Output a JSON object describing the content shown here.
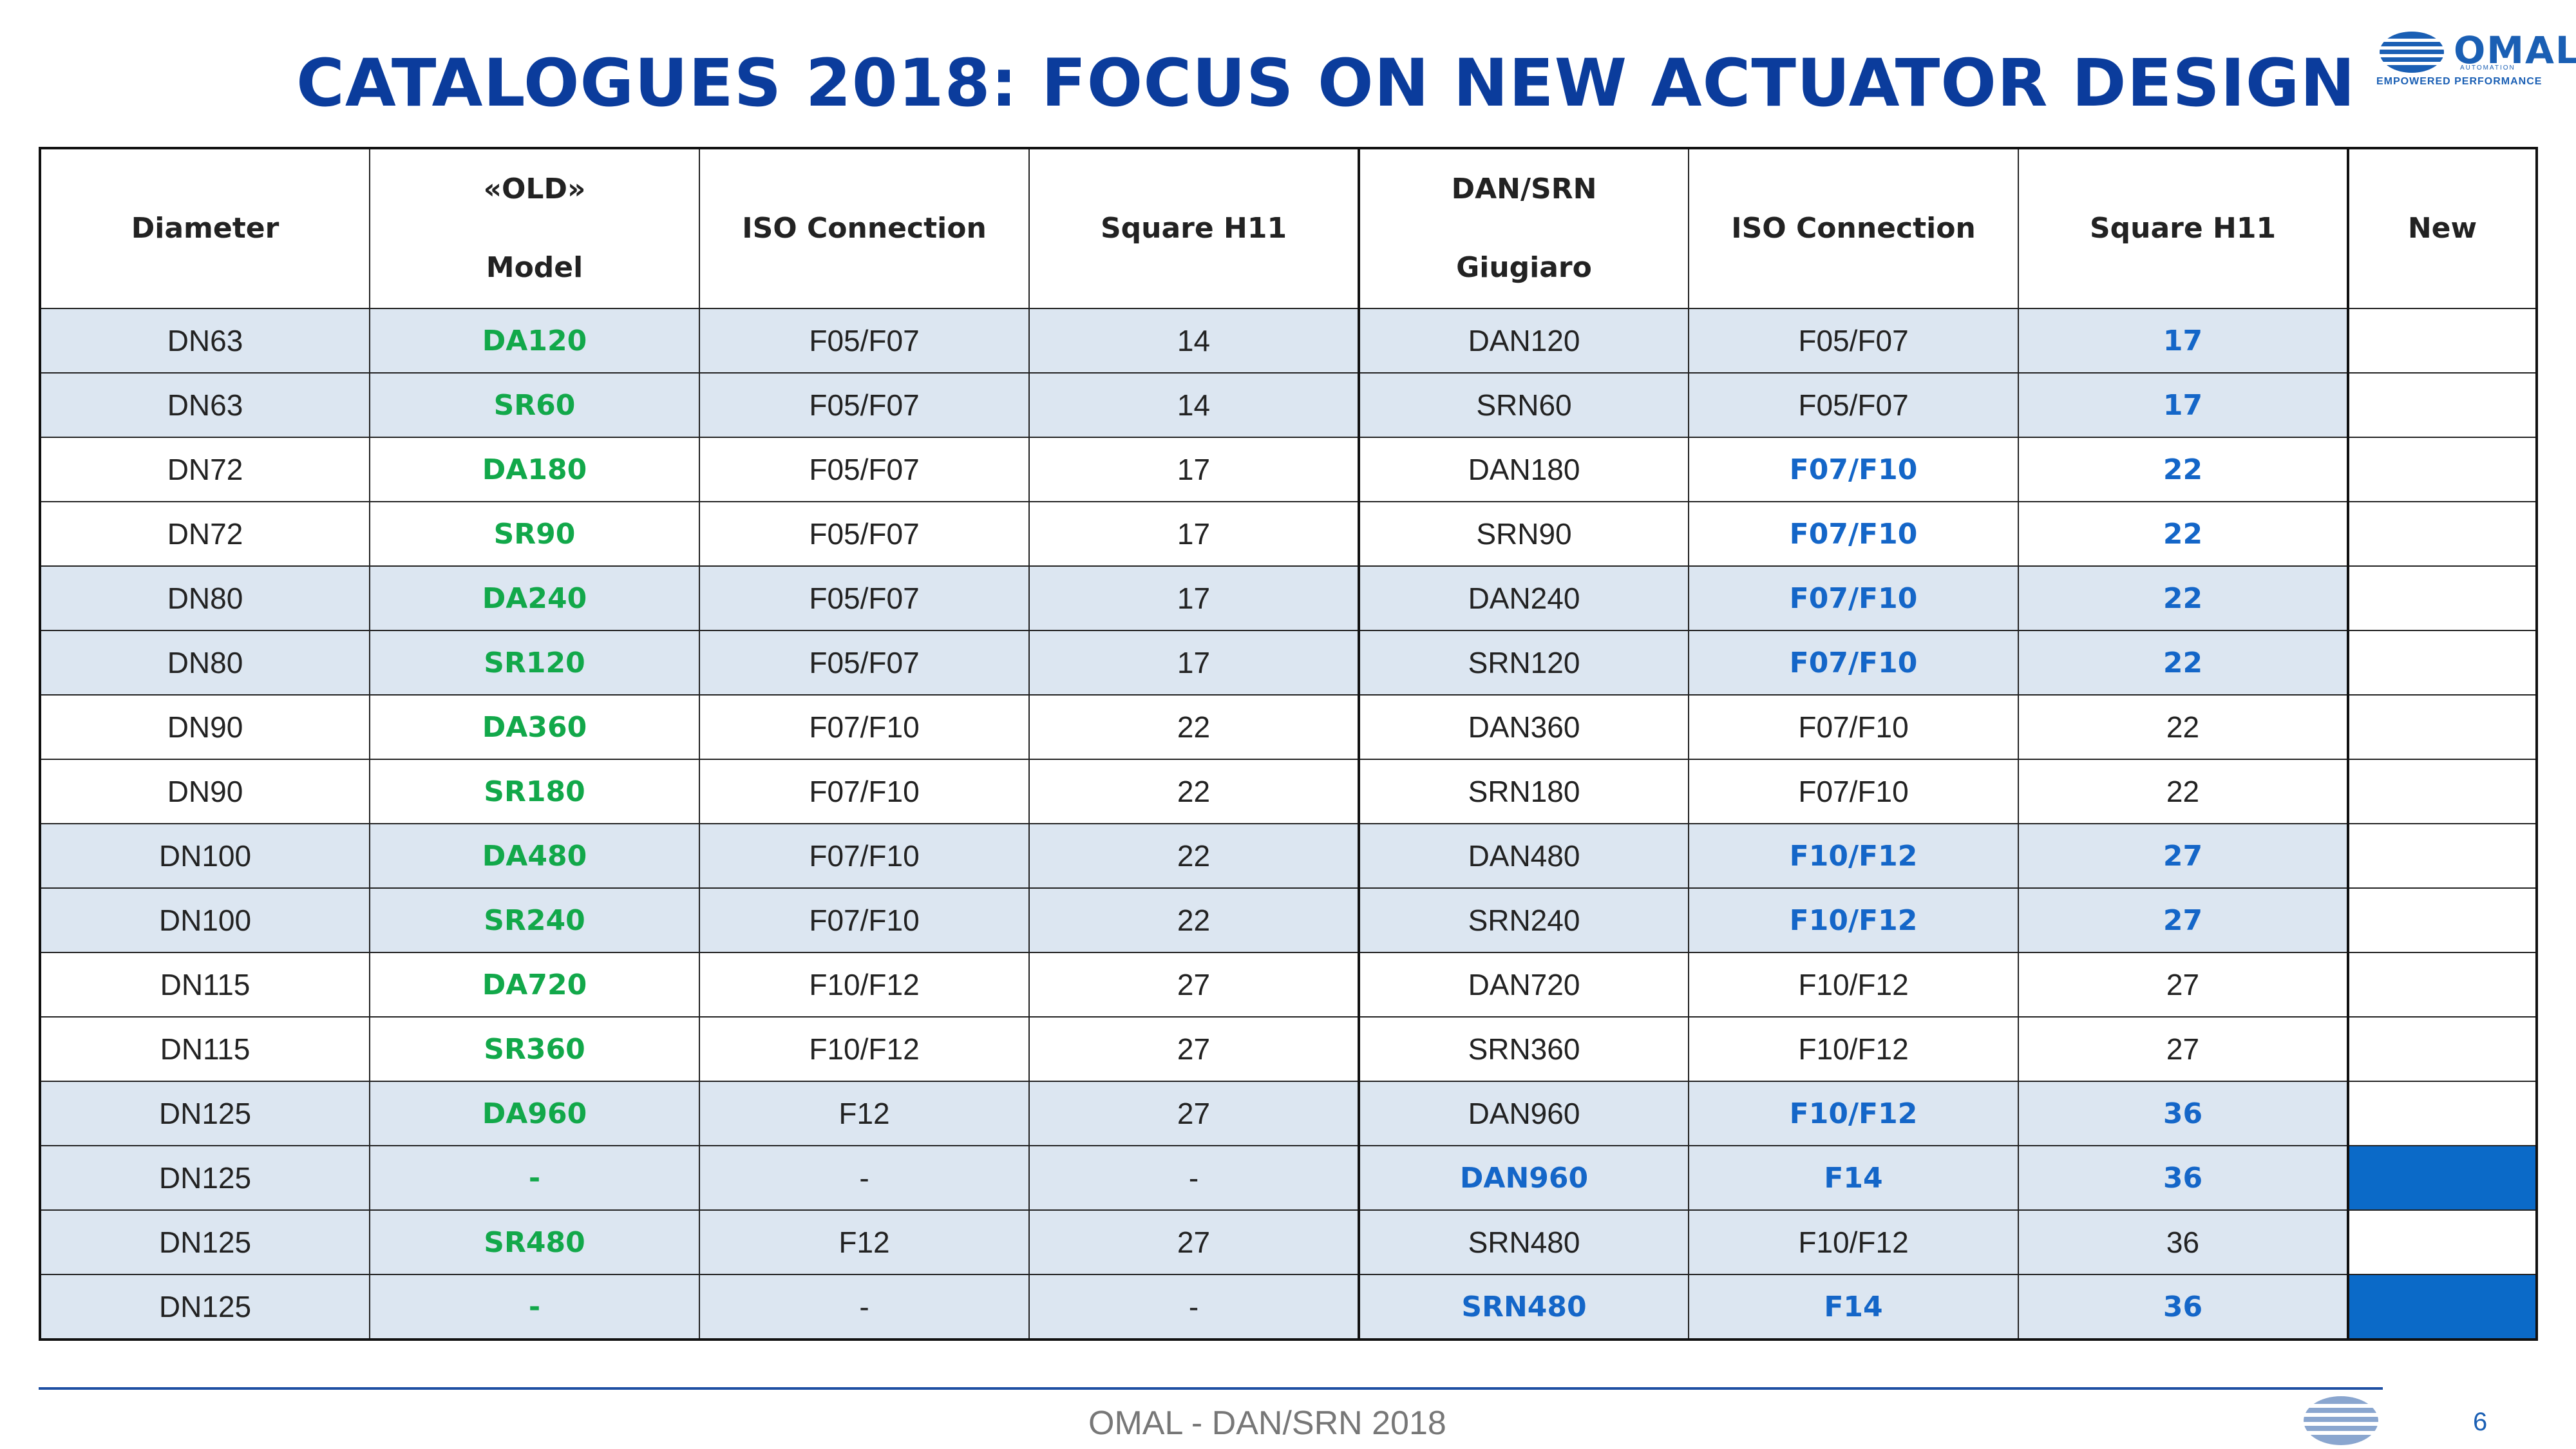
{
  "title": "CATALOGUES 2018: FOCUS ON NEW ACTUATOR DESIGN",
  "logo": {
    "name": "OMAL",
    "sub": "AUTOMATION",
    "tagline": "EMPOWERED PERFORMANCE",
    "icon": "omal-globe-icon"
  },
  "colors": {
    "title": "#0b3c9c",
    "green": "#12a84a",
    "blue": "#1466c8",
    "shade": "#dce6f1",
    "new_fill": "#0b6ac8"
  },
  "table": {
    "headers": {
      "diameter": "Diameter",
      "old_line1": "«OLD»",
      "old_line2": "Model",
      "iso1": "ISO Connection",
      "sq1": "Square H11",
      "dan_line1": "DAN/SRN",
      "dan_line2": "Giugiaro",
      "iso2": "ISO Connection",
      "sq2": "Square H11",
      "new": "New"
    },
    "rows": [
      {
        "d": "DN63",
        "m": "DA120",
        "iso": "F05/F07",
        "sq": "14",
        "n": "DAN120",
        "iso2": "F05/F07",
        "sq2": "17"
      },
      {
        "d": "DN63",
        "m": "SR60",
        "iso": "F05/F07",
        "sq": "14",
        "n": "SRN60",
        "iso2": "F05/F07",
        "sq2": "17"
      },
      {
        "d": "DN72",
        "m": "DA180",
        "iso": "F05/F07",
        "sq": "17",
        "n": "DAN180",
        "iso2": "F07/F10",
        "sq2": "22"
      },
      {
        "d": "DN72",
        "m": "SR90",
        "iso": "F05/F07",
        "sq": "17",
        "n": "SRN90",
        "iso2": "F07/F10",
        "sq2": "22"
      },
      {
        "d": "DN80",
        "m": "DA240",
        "iso": "F05/F07",
        "sq": "17",
        "n": "DAN240",
        "iso2": "F07/F10",
        "sq2": "22"
      },
      {
        "d": "DN80",
        "m": "SR120",
        "iso": "F05/F07",
        "sq": "17",
        "n": "SRN120",
        "iso2": "F07/F10",
        "sq2": "22"
      },
      {
        "d": "DN90",
        "m": "DA360",
        "iso": "F07/F10",
        "sq": "22",
        "n": "DAN360",
        "iso2": "F07/F10",
        "sq2": "22"
      },
      {
        "d": "DN90",
        "m": "SR180",
        "iso": "F07/F10",
        "sq": "22",
        "n": "SRN180",
        "iso2": "F07/F10",
        "sq2": "22"
      },
      {
        "d": "DN100",
        "m": "DA480",
        "iso": "F07/F10",
        "sq": "22",
        "n": "DAN480",
        "iso2": "F10/F12",
        "sq2": "27"
      },
      {
        "d": "DN100",
        "m": "SR240",
        "iso": "F07/F10",
        "sq": "22",
        "n": "SRN240",
        "iso2": "F10/F12",
        "sq2": "27"
      },
      {
        "d": "DN115",
        "m": "DA720",
        "iso": "F10/F12",
        "sq": "27",
        "n": "DAN720",
        "iso2": "F10/F12",
        "sq2": "27"
      },
      {
        "d": "DN115",
        "m": "SR360",
        "iso": "F10/F12",
        "sq": "27",
        "n": "SRN360",
        "iso2": "F10/F12",
        "sq2": "27"
      },
      {
        "d": "DN125",
        "m": "DA960",
        "iso": "F12",
        "sq": "27",
        "n": "DAN960",
        "iso2": "F10/F12",
        "sq2": "36"
      },
      {
        "d": "DN125",
        "m": "-",
        "iso": "-",
        "sq": "-",
        "n": "DAN960",
        "iso2": "F14",
        "sq2": "36"
      },
      {
        "d": "DN125",
        "m": "SR480",
        "iso": "F12",
        "sq": "27",
        "n": "SRN480",
        "iso2": "F10/F12",
        "sq2": "36"
      },
      {
        "d": "DN125",
        "m": "-",
        "iso": "-",
        "sq": "-",
        "n": "SRN480",
        "iso2": "F14",
        "sq2": "36"
      }
    ]
  },
  "footer": {
    "text": "OMAL - DAN/SRN 2018",
    "page": "6"
  }
}
